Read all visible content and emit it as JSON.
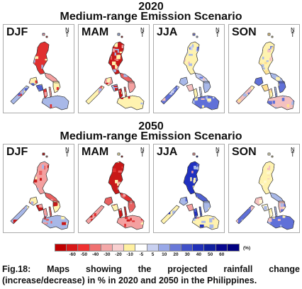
{
  "sections": [
    {
      "year": "2020",
      "scenario": "Medium-range Emission Scenario",
      "panels": [
        {
          "label": "DJF",
          "palette": [
            "#e03030",
            "#f4a0a0",
            "#fff3b0",
            "#a8b8e8",
            "#5060d0"
          ]
        },
        {
          "label": "MAM",
          "palette": [
            "#c81818",
            "#e86060",
            "#f4a0a0",
            "#fff3b0",
            "#a8b8e8"
          ]
        },
        {
          "label": "JJA",
          "palette": [
            "#fff3b0",
            "#c8d0f0",
            "#a8b8e8",
            "#6070d8",
            "#f4c0c0"
          ]
        },
        {
          "label": "SON",
          "palette": [
            "#fff3b0",
            "#a8b8e8",
            "#6070d8",
            "#f4c0c0",
            "#ffe090"
          ]
        }
      ]
    },
    {
      "year": "2050",
      "scenario": "Medium-range Emission Scenario",
      "panels": [
        {
          "label": "DJF",
          "palette": [
            "#f4a0a0",
            "#e86060",
            "#fff3b0",
            "#a8b8e8",
            "#c81818"
          ]
        },
        {
          "label": "MAM",
          "palette": [
            "#c81818",
            "#e03030",
            "#e86060",
            "#f4a0a0",
            "#fff3b0"
          ]
        },
        {
          "label": "JJA",
          "palette": [
            "#2030c0",
            "#5060d0",
            "#a8b8e8",
            "#fff3b0",
            "#f4a0a0"
          ]
        },
        {
          "label": "SON",
          "palette": [
            "#fff3b0",
            "#a8b8e8",
            "#f4c0c0",
            "#6070d8",
            "#fff8d0"
          ]
        }
      ]
    }
  ],
  "north_symbol": "N",
  "legend": {
    "colors": [
      "#c00000",
      "#d81818",
      "#f03030",
      "#f07070",
      "#f4a8a8",
      "#f8d0d0",
      "#fff0a0",
      "#ffffff",
      "#c8d0f0",
      "#98a8e8",
      "#6878d8",
      "#4050c8",
      "#2030b8",
      "#1020a0",
      "#080890",
      "#000080"
    ],
    "ticks": [
      "-60",
      "-50",
      "-40",
      "-30",
      "-20",
      "-10",
      "-5",
      "5",
      "10",
      "20",
      "30",
      "40",
      "50",
      "60"
    ],
    "unit": "(%)"
  },
  "caption": {
    "line1_words": [
      "Fig.18:",
      "Maps",
      "showing",
      "the",
      "projected",
      "rainfall",
      "change"
    ],
    "line2": "(increase/decrease) in % in 2020 and 2050 in the Philippines."
  }
}
